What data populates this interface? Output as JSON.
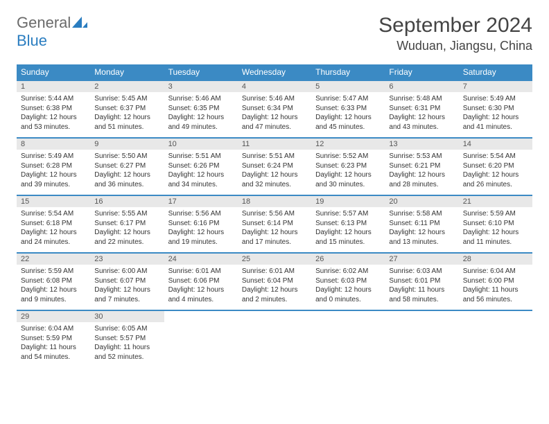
{
  "logo": {
    "text1": "General",
    "text2": "Blue",
    "color1": "#6a6a6a",
    "color2": "#2a7dc0"
  },
  "title": "September 2024",
  "location": "Wuduan, Jiangsu, China",
  "colors": {
    "header_bg": "#3b8ac4",
    "header_text": "#ffffff",
    "daynum_bg": "#e8e8e8",
    "border": "#3b8ac4",
    "body_text": "#333333",
    "page_bg": "#ffffff"
  },
  "fonts": {
    "title_size": 30,
    "location_size": 18,
    "weekday_size": 12,
    "daynum_size": 11,
    "detail_size": 10
  },
  "weekdays": [
    "Sunday",
    "Monday",
    "Tuesday",
    "Wednesday",
    "Thursday",
    "Friday",
    "Saturday"
  ],
  "weeks": [
    [
      {
        "n": "1",
        "sr": "5:44 AM",
        "ss": "6:38 PM",
        "dl": "12 hours and 53 minutes."
      },
      {
        "n": "2",
        "sr": "5:45 AM",
        "ss": "6:37 PM",
        "dl": "12 hours and 51 minutes."
      },
      {
        "n": "3",
        "sr": "5:46 AM",
        "ss": "6:35 PM",
        "dl": "12 hours and 49 minutes."
      },
      {
        "n": "4",
        "sr": "5:46 AM",
        "ss": "6:34 PM",
        "dl": "12 hours and 47 minutes."
      },
      {
        "n": "5",
        "sr": "5:47 AM",
        "ss": "6:33 PM",
        "dl": "12 hours and 45 minutes."
      },
      {
        "n": "6",
        "sr": "5:48 AM",
        "ss": "6:31 PM",
        "dl": "12 hours and 43 minutes."
      },
      {
        "n": "7",
        "sr": "5:49 AM",
        "ss": "6:30 PM",
        "dl": "12 hours and 41 minutes."
      }
    ],
    [
      {
        "n": "8",
        "sr": "5:49 AM",
        "ss": "6:28 PM",
        "dl": "12 hours and 39 minutes."
      },
      {
        "n": "9",
        "sr": "5:50 AM",
        "ss": "6:27 PM",
        "dl": "12 hours and 36 minutes."
      },
      {
        "n": "10",
        "sr": "5:51 AM",
        "ss": "6:26 PM",
        "dl": "12 hours and 34 minutes."
      },
      {
        "n": "11",
        "sr": "5:51 AM",
        "ss": "6:24 PM",
        "dl": "12 hours and 32 minutes."
      },
      {
        "n": "12",
        "sr": "5:52 AM",
        "ss": "6:23 PM",
        "dl": "12 hours and 30 minutes."
      },
      {
        "n": "13",
        "sr": "5:53 AM",
        "ss": "6:21 PM",
        "dl": "12 hours and 28 minutes."
      },
      {
        "n": "14",
        "sr": "5:54 AM",
        "ss": "6:20 PM",
        "dl": "12 hours and 26 minutes."
      }
    ],
    [
      {
        "n": "15",
        "sr": "5:54 AM",
        "ss": "6:18 PM",
        "dl": "12 hours and 24 minutes."
      },
      {
        "n": "16",
        "sr": "5:55 AM",
        "ss": "6:17 PM",
        "dl": "12 hours and 22 minutes."
      },
      {
        "n": "17",
        "sr": "5:56 AM",
        "ss": "6:16 PM",
        "dl": "12 hours and 19 minutes."
      },
      {
        "n": "18",
        "sr": "5:56 AM",
        "ss": "6:14 PM",
        "dl": "12 hours and 17 minutes."
      },
      {
        "n": "19",
        "sr": "5:57 AM",
        "ss": "6:13 PM",
        "dl": "12 hours and 15 minutes."
      },
      {
        "n": "20",
        "sr": "5:58 AM",
        "ss": "6:11 PM",
        "dl": "12 hours and 13 minutes."
      },
      {
        "n": "21",
        "sr": "5:59 AM",
        "ss": "6:10 PM",
        "dl": "12 hours and 11 minutes."
      }
    ],
    [
      {
        "n": "22",
        "sr": "5:59 AM",
        "ss": "6:08 PM",
        "dl": "12 hours and 9 minutes."
      },
      {
        "n": "23",
        "sr": "6:00 AM",
        "ss": "6:07 PM",
        "dl": "12 hours and 7 minutes."
      },
      {
        "n": "24",
        "sr": "6:01 AM",
        "ss": "6:06 PM",
        "dl": "12 hours and 4 minutes."
      },
      {
        "n": "25",
        "sr": "6:01 AM",
        "ss": "6:04 PM",
        "dl": "12 hours and 2 minutes."
      },
      {
        "n": "26",
        "sr": "6:02 AM",
        "ss": "6:03 PM",
        "dl": "12 hours and 0 minutes."
      },
      {
        "n": "27",
        "sr": "6:03 AM",
        "ss": "6:01 PM",
        "dl": "11 hours and 58 minutes."
      },
      {
        "n": "28",
        "sr": "6:04 AM",
        "ss": "6:00 PM",
        "dl": "11 hours and 56 minutes."
      }
    ],
    [
      {
        "n": "29",
        "sr": "6:04 AM",
        "ss": "5:59 PM",
        "dl": "11 hours and 54 minutes."
      },
      {
        "n": "30",
        "sr": "6:05 AM",
        "ss": "5:57 PM",
        "dl": "11 hours and 52 minutes."
      },
      null,
      null,
      null,
      null,
      null
    ]
  ],
  "labels": {
    "sunrise": "Sunrise:",
    "sunset": "Sunset:",
    "daylight": "Daylight:"
  }
}
